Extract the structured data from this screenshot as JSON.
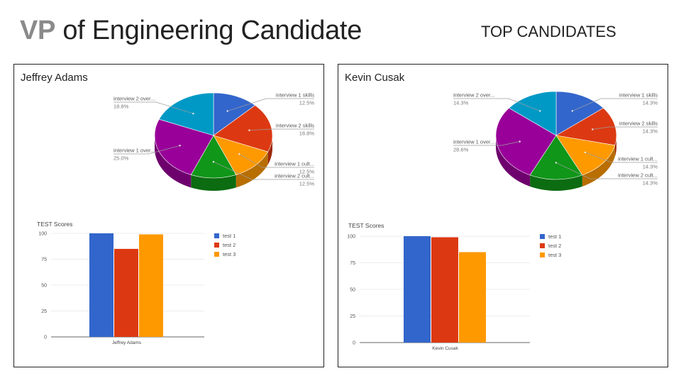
{
  "header": {
    "title_strong": "VP",
    "title_rest": " of Engineering Candidate",
    "subtitle": "TOP CANDIDATES"
  },
  "colors": {
    "blue": "#3366cc",
    "red": "#dc3912",
    "orange": "#ff9900",
    "green": "#109618",
    "purple": "#990099",
    "teal": "#0099c6"
  },
  "candidates": [
    {
      "name": "Jeffrey Adams"
    },
    {
      "name": "Kevin Cusak"
    }
  ],
  "chart_data": [
    {
      "type": "pie",
      "candidate": "Jeffrey Adams",
      "labels": [
        "interview 1 skills",
        "interview 2 skills",
        "interview 1 cult...",
        "interview 2 cult...",
        "interview 1 over...",
        "interview 2 over..."
      ],
      "values": [
        12.5,
        18.8,
        12.5,
        12.5,
        25.0,
        18.8
      ],
      "value_labels": [
        "12.5%",
        "18.8%",
        "12.5%",
        "12.5%",
        "25.0%",
        "18.8%"
      ],
      "colors": [
        "#3366cc",
        "#dc3912",
        "#ff9900",
        "#109618",
        "#990099",
        "#0099c6"
      ]
    },
    {
      "type": "bar",
      "candidate": "Jeffrey Adams",
      "title": "TEST Scores",
      "categories": [
        "Jeffrey Adams"
      ],
      "series": [
        {
          "name": "test 1",
          "values": [
            100
          ],
          "color": "#3366cc"
        },
        {
          "name": "test 2",
          "values": [
            85
          ],
          "color": "#dc3912"
        },
        {
          "name": "test 3",
          "values": [
            99
          ],
          "color": "#ff9900"
        }
      ],
      "ylim": [
        0,
        100
      ],
      "yticks": [
        0,
        25,
        50,
        75,
        100
      ],
      "grid": true,
      "legend": "right"
    },
    {
      "type": "pie",
      "candidate": "Kevin Cusak",
      "labels": [
        "interview 1 skills",
        "interview 2 skills",
        "interview 1 cult...",
        "interview 2 cult...",
        "interview 1 over...",
        "interview 2 over..."
      ],
      "values": [
        14.3,
        14.3,
        14.3,
        14.3,
        28.6,
        14.3
      ],
      "value_labels": [
        "14.3%",
        "14.3%",
        "14.3%",
        "14.3%",
        "28.6%",
        "14.3%"
      ],
      "colors": [
        "#3366cc",
        "#dc3912",
        "#ff9900",
        "#109618",
        "#990099",
        "#0099c6"
      ]
    },
    {
      "type": "bar",
      "candidate": "Kevin Cusak",
      "title": "TEST Scores",
      "categories": [
        "Kevin Cusak"
      ],
      "series": [
        {
          "name": "test 1",
          "values": [
            100
          ],
          "color": "#3366cc"
        },
        {
          "name": "test 2",
          "values": [
            99
          ],
          "color": "#dc3912"
        },
        {
          "name": "test 3",
          "values": [
            85
          ],
          "color": "#ff9900"
        }
      ],
      "ylim": [
        0,
        100
      ],
      "yticks": [
        0,
        25,
        50,
        75,
        100
      ],
      "grid": true,
      "legend": "right"
    }
  ]
}
